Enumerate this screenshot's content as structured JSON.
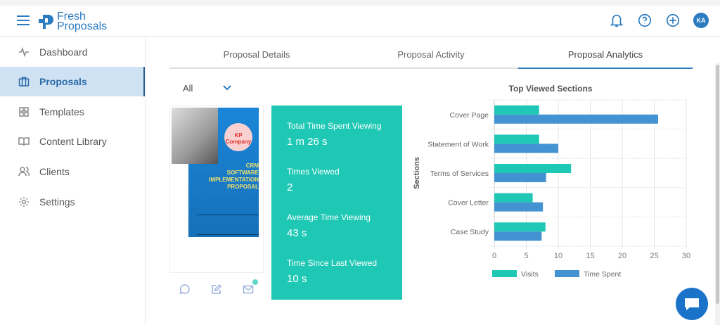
{
  "app": {
    "brand_line1": "Fresh",
    "brand_line2": "Proposals",
    "avatar_initials": "KA",
    "accent": "#2b7bc0"
  },
  "header": {
    "icons": [
      "bell-icon",
      "help-icon",
      "plus-circle-icon"
    ]
  },
  "sidebar": {
    "items": [
      {
        "label": "Dashboard",
        "icon": "activity-icon"
      },
      {
        "label": "Proposals",
        "icon": "briefcase-icon",
        "active": true
      },
      {
        "label": "Templates",
        "icon": "grid-icon"
      },
      {
        "label": "Content Library",
        "icon": "book-icon"
      },
      {
        "label": "Clients",
        "icon": "users-icon"
      },
      {
        "label": "Settings",
        "icon": "gear-icon"
      }
    ]
  },
  "tabs": [
    {
      "label": "Proposal Details"
    },
    {
      "label": "Proposal Activity"
    },
    {
      "label": "Proposal Analytics",
      "active": true
    }
  ],
  "filter": {
    "selected": "All"
  },
  "thumbnail": {
    "company": "KP Company",
    "title_line1": "CRM",
    "title_line2": "SOFTWARE",
    "title_line3": "IMPLEMENTATION",
    "title_line4": "PROPOSAL"
  },
  "stats": {
    "color": "#1fc8b4",
    "items": [
      {
        "label": "Total Time Spent Viewing",
        "value": "1 m 26 s"
      },
      {
        "label": "Times Viewed",
        "value": "2"
      },
      {
        "label": "Average Time Viewing",
        "value": "43 s"
      },
      {
        "label": "Time Since Last Viewed",
        "value": "10 s"
      }
    ]
  },
  "chart_data": {
    "type": "bar",
    "orientation": "horizontal",
    "title": "Top Viewed Sections",
    "ylabel": "Sections",
    "xlabel": "",
    "categories": [
      "Cover Page",
      "Statement of Work",
      "Terms of Services",
      "Cover Letter",
      "Case Study"
    ],
    "series": [
      {
        "name": "Visits",
        "color": "#1fc8b4",
        "values": [
          7,
          7,
          12,
          6,
          8
        ]
      },
      {
        "name": "Time Spent",
        "color": "#4393d3",
        "values": [
          25.6,
          10,
          8.1,
          7.6,
          7.4
        ]
      }
    ],
    "xlim": [
      0,
      30
    ],
    "xticks": [
      "0",
      "5",
      "10",
      "15",
      "20",
      "25",
      "30"
    ],
    "grid": true,
    "legend": "bottom"
  }
}
